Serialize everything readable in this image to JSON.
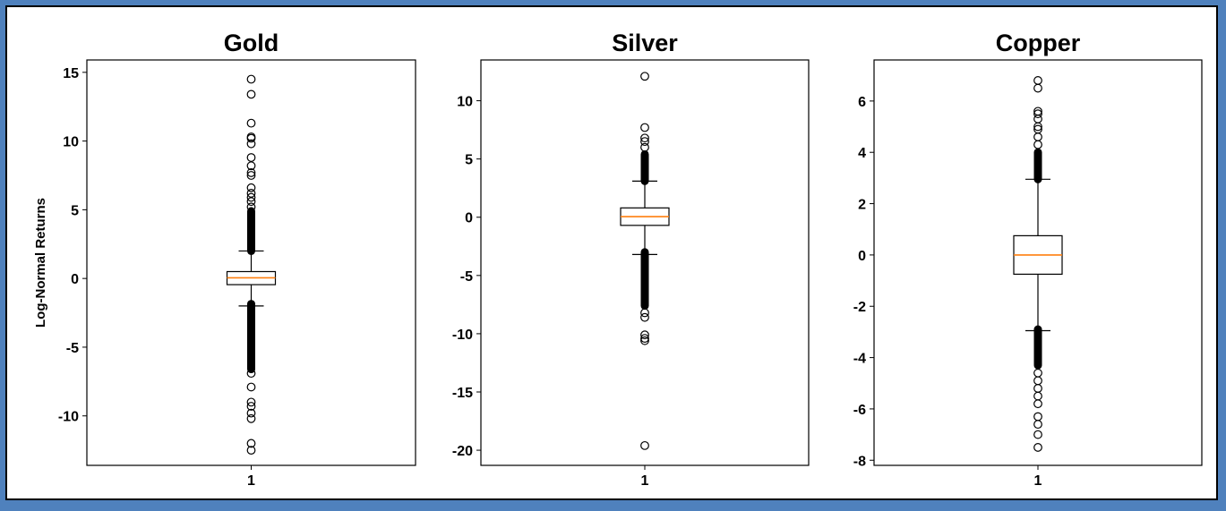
{
  "chart_data": [
    {
      "type": "boxplot",
      "title": "Gold",
      "xlabel": "",
      "ylabel": "Log-Normal Returns",
      "categories": [
        "1"
      ],
      "ylim": [
        -13.6,
        15.9
      ],
      "yticks": [
        15,
        10,
        5,
        0,
        -5,
        -10
      ],
      "ytick_labels": [
        "15",
        "10",
        "5",
        "0",
        "-5",
        "-10"
      ],
      "box": {
        "q1": -0.45,
        "median": 0.05,
        "q3": 0.5,
        "whisker_low": -2.0,
        "whisker_high": 2.0
      },
      "dense_outliers": [
        [
          2.0,
          4.9
        ],
        [
          -6.6,
          -1.85
        ]
      ],
      "outliers": [
        14.5,
        13.4,
        11.3,
        10.3,
        10.2,
        9.8,
        8.8,
        8.2,
        7.7,
        7.5,
        6.6,
        6.2,
        5.9,
        5.6,
        5.2,
        -6.9,
        -7.9,
        -9.0,
        -9.3,
        -9.8,
        -10.2,
        -12.0,
        -12.5
      ]
    },
    {
      "type": "boxplot",
      "title": "Silver",
      "xlabel": "",
      "ylabel": "",
      "categories": [
        "1"
      ],
      "ylim": [
        -21.3,
        13.5
      ],
      "yticks": [
        10,
        5,
        0,
        -5,
        -10,
        -15,
        -20
      ],
      "ytick_labels": [
        "10",
        "5",
        "0",
        "-5",
        "-10",
        "-15",
        "-20"
      ],
      "box": {
        "q1": -0.7,
        "median": 0.05,
        "q3": 0.8,
        "whisker_low": -3.2,
        "whisker_high": 3.1
      },
      "dense_outliers": [
        [
          3.1,
          5.4
        ],
        [
          -7.6,
          -3.0
        ]
      ],
      "outliers": [
        12.1,
        7.7,
        6.8,
        6.5,
        6.0,
        -8.2,
        -8.6,
        -10.1,
        -10.4,
        -10.6,
        -19.6
      ]
    },
    {
      "type": "boxplot",
      "title": "Copper",
      "xlabel": "",
      "ylabel": "",
      "categories": [
        "1"
      ],
      "ylim": [
        -8.2,
        7.6
      ],
      "yticks": [
        6,
        4,
        2,
        0,
        -2,
        -4,
        -6,
        -8
      ],
      "ytick_labels": [
        "6",
        "4",
        "2",
        "0",
        "-2",
        "-4",
        "-6",
        "-8"
      ],
      "box": {
        "q1": -0.75,
        "median": 0.0,
        "q3": 0.75,
        "whisker_low": -2.95,
        "whisker_high": 2.95
      },
      "dense_outliers": [
        [
          2.95,
          4.0
        ],
        [
          -4.3,
          -2.9
        ]
      ],
      "outliers": [
        6.8,
        6.5,
        5.6,
        5.5,
        5.3,
        5.0,
        4.9,
        4.6,
        4.3,
        -4.6,
        -4.9,
        -5.2,
        -5.5,
        -5.8,
        -6.3,
        -6.6,
        -7.0,
        -7.5
      ]
    }
  ]
}
